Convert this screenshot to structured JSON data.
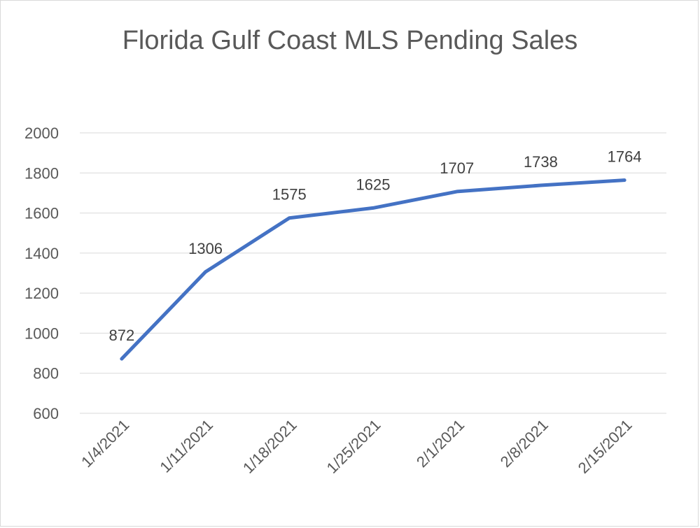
{
  "chart_data": {
    "type": "line",
    "title": "Florida Gulf Coast MLS Pending Sales",
    "xlabel": "",
    "ylabel": "",
    "categories": [
      "1/4/2021",
      "1/11/2021",
      "1/18/2021",
      "1/25/2021",
      "2/1/2021",
      "2/8/2021",
      "2/15/2021"
    ],
    "series": [
      {
        "values": [
          872,
          1306,
          1575,
          1625,
          1707,
          1738,
          1764
        ],
        "color": "#4472c4"
      }
    ],
    "ylim": [
      600,
      2000
    ],
    "yticks": [
      600,
      800,
      1000,
      1200,
      1400,
      1600,
      1800,
      2000
    ],
    "grid": true,
    "legend": "none",
    "data_labels": true
  },
  "colors": {
    "line": "#4472c4",
    "gridline": "#d9d9d9",
    "text": "#595959",
    "data_label": "#404040"
  }
}
